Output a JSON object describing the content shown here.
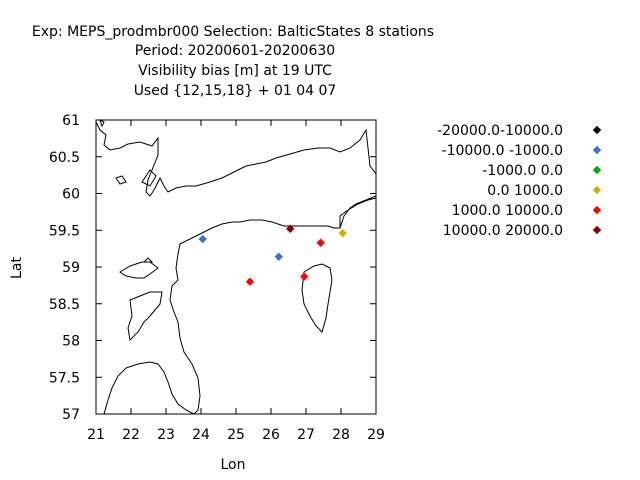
{
  "chart_data": {
    "type": "scatter",
    "title_lines": [
      "Exp: MEPS_prodmbr000   Selection: BalticStates      8 stations",
      "Period: 20200601-20200630",
      "Visibility bias [m] at  19 UTC",
      "Used {12,15,18} + 01 04 07"
    ],
    "xlabel": "Lon",
    "ylabel": "Lat",
    "xlim": [
      21,
      29
    ],
    "ylim": [
      57,
      61
    ],
    "xticks": [
      "21",
      "22",
      "23",
      "24",
      "25",
      "26",
      "27",
      "28",
      "29"
    ],
    "yticks": [
      "57",
      "57.5",
      "58",
      "58.5",
      "59",
      "59.5",
      "60",
      "60.5",
      "61"
    ],
    "legend_position": "right",
    "series": [
      {
        "name": "-20000.0-10000.0",
        "color": "#000000",
        "points": []
      },
      {
        "name": "-10000.0 -1000.0",
        "color": "#3a6fd8",
        "points": [
          [
            24.05,
            59.38
          ],
          [
            26.22,
            59.14
          ]
        ]
      },
      {
        "name": "-1000.0 0.0",
        "color": "#00aa00",
        "points": []
      },
      {
        "name": "0.0 1000.0",
        "color": "#c8b400",
        "points": [
          [
            28.05,
            59.46
          ]
        ]
      },
      {
        "name": "1000.0 10000.0",
        "color": "#ff0000",
        "points": [
          [
            25.4,
            58.8
          ],
          [
            26.95,
            58.87
          ],
          [
            27.42,
            59.33
          ]
        ]
      },
      {
        "name": "10000.0 20000.0",
        "color": "#8b0000",
        "points": [
          [
            26.55,
            59.52
          ]
        ]
      }
    ]
  }
}
